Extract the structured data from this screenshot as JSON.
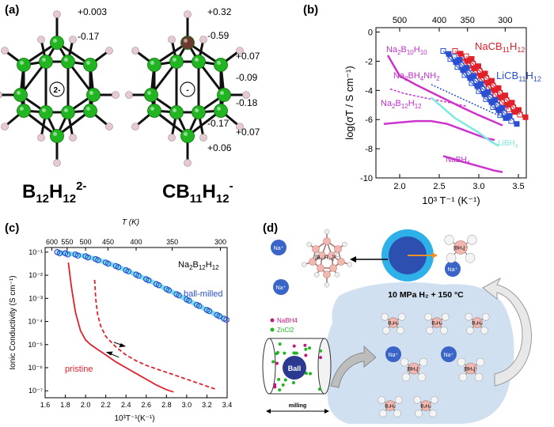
{
  "panel_a": {
    "label": "(a)",
    "left_caption": "B12H12 2-",
    "left_caption_parts": {
      "b": "B",
      "b_sub": "12",
      "h": "H",
      "h_sub": "12",
      "sup": "2-"
    },
    "right_caption_parts": {
      "c": "C",
      "b": "B",
      "b_sub": "11",
      "h": "H",
      "h_sub": "12",
      "sup": "-"
    },
    "left_center": "2-",
    "right_center": "-",
    "left_charges": [
      "+0.003",
      "-0.17"
    ],
    "right_charges": [
      "+0.32",
      "-0.59",
      "+0.07",
      "-0.09",
      "-0.18",
      "-0.17",
      "+0.07",
      "+0.06"
    ],
    "colors": {
      "boron": "#22b522",
      "hydrogen": "#e6c9d2",
      "carbon": "#6b3a2e"
    }
  },
  "panel_b": {
    "label": "(b)",
    "chart_data": {
      "type": "scatter",
      "ylabel": "log(σT / S cm⁻¹)",
      "xlabel": "10³ T⁻¹ (K⁻¹)",
      "x_ticks": [
        "2.0",
        "2.5",
        "3.0",
        "3.5"
      ],
      "y_ticks": [
        "0",
        "-2",
        "-4",
        "-6",
        "-8",
        "-10"
      ],
      "top_ticks": [
        "500",
        "400",
        "350",
        "300"
      ],
      "xlim": [
        1.7,
        3.6
      ],
      "ylim": [
        -10,
        0.3
      ],
      "series_labels": [
        "NaCB11H12",
        "LiCB11H12",
        "Na2B10H10",
        "Na2BH4NH2",
        "Na2B12H12",
        "LiBH4",
        "NaBH4"
      ],
      "label_parts": {
        "nacb": [
          "NaCB",
          "11",
          "H",
          "12"
        ],
        "licb": [
          "LiCB",
          "11",
          "H",
          "12"
        ],
        "na2b10": [
          "Na",
          "2",
          "B",
          "10",
          "H",
          "10"
        ],
        "na2bh4": [
          "Na",
          "2",
          "BH",
          "4",
          "NH",
          "2"
        ],
        "na2b12": [
          "Na",
          "2",
          "B",
          "12",
          "H",
          "12"
        ],
        "libh4": [
          "LiBH",
          "4"
        ],
        "nabh4": [
          "NaBH",
          "4"
        ]
      }
    }
  },
  "panel_c": {
    "label": "(c)",
    "chart_data": {
      "type": "line",
      "ylabel": "Ionic Conductivity (S cm⁻¹)",
      "xlabel": "10³T⁻¹(K⁻¹)",
      "top_label": "T (K)",
      "x_ticks": [
        "1.6",
        "1.8",
        "2.0",
        "2.2",
        "2.4",
        "2.6",
        "2.8",
        "3.0",
        "3.2",
        "3.4"
      ],
      "top_ticks": [
        "600",
        "550",
        "500",
        "450",
        "400",
        "350",
        "300"
      ],
      "y_ticks": [
        "10⁻¹",
        "10⁻²",
        "10⁻³",
        "10⁻⁴",
        "10⁻⁵",
        "10⁻⁶",
        "10⁻⁷"
      ],
      "xlim": [
        1.6,
        3.4
      ],
      "ylim_log10": [
        -7.3,
        -0.8
      ],
      "title_parts": [
        "Na",
        "2",
        "B",
        "12",
        "H",
        "12"
      ],
      "series_labels": [
        "ball-milled",
        "pristine"
      ],
      "series": [
        {
          "name": "ball-milled",
          "x": [
            1.72,
            1.8,
            1.9,
            2.0,
            2.1,
            2.2,
            2.3,
            2.4,
            2.5,
            2.6,
            2.7,
            2.8,
            2.9,
            3.0,
            3.1,
            3.2,
            3.3,
            3.37
          ],
          "log10_y": [
            -1.0,
            -1.05,
            -1.1,
            -1.18,
            -1.3,
            -1.45,
            -1.6,
            -1.78,
            -1.97,
            -2.17,
            -2.38,
            -2.6,
            -2.82,
            -3.05,
            -3.28,
            -3.5,
            -3.72,
            -3.88
          ]
        },
        {
          "name": "pristine",
          "x": [
            1.83,
            1.86,
            1.9,
            1.95,
            2.0,
            2.05,
            2.1,
            2.2,
            2.3,
            2.4,
            2.5,
            2.6,
            2.7,
            2.8,
            2.87
          ],
          "log10_y": [
            -1.45,
            -2.5,
            -3.6,
            -4.4,
            -4.8,
            -5.0,
            -5.15,
            -5.45,
            -5.75,
            -6.0,
            -6.25,
            -6.5,
            -6.75,
            -6.95,
            -7.05
          ]
        },
        {
          "name": "pristine-heating",
          "x": [
            2.09,
            2.1,
            2.12,
            2.15,
            2.2,
            2.3,
            2.4,
            2.5,
            2.6,
            2.7,
            2.8,
            2.9,
            3.0,
            3.1,
            3.2,
            3.3
          ],
          "log10_y": [
            -2.2,
            -3.0,
            -3.7,
            -4.2,
            -4.65,
            -5.1,
            -5.45,
            -5.7,
            -5.9,
            -6.05,
            -6.2,
            -6.35,
            -6.5,
            -6.65,
            -6.8,
            -6.95
          ]
        }
      ]
    }
  },
  "panel_d": {
    "label": "(d)",
    "condition": "10 MPa H₂ + 150 °C",
    "legend_nabh4": "NaBH4",
    "legend_zncl2": "ZnCl2",
    "ball_label": "Ball",
    "milling_label": "milling",
    "na_label": "Na⁺",
    "cluster_label": "[B₁₂H₁₂]²⁻",
    "bh4_label": "[BH₄]⁻",
    "b2h6_label": "B₂H₆"
  }
}
